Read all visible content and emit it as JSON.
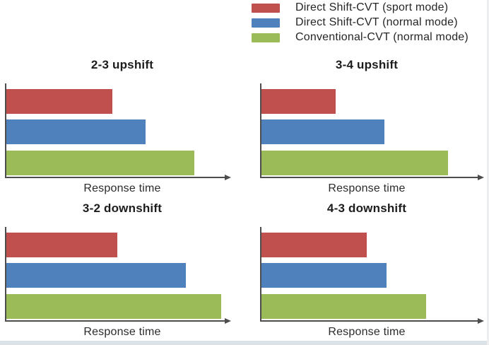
{
  "chart_data": {
    "type": "bar",
    "orientation": "horizontal",
    "value_scale": "relative bar length (0-1 fraction of unlabeled axis); no numeric ticks shown",
    "grid": false,
    "legend_position": "top-right",
    "series": [
      {
        "name": "Direct Shift-CVT  (sport mode)",
        "color": "#c0504d"
      },
      {
        "name": "Direct Shift-CVT  (normal mode)",
        "color": "#4f81bd"
      },
      {
        "name": "Conventional-CVT (normal mode)",
        "color": "#9bbb59"
      }
    ],
    "panels": [
      {
        "title": "2-3 upshift",
        "xlabel": "Response time",
        "values": [
          0.48,
          0.63,
          0.85
        ]
      },
      {
        "title": "3-4 upshift",
        "xlabel": "Response time",
        "values": [
          0.34,
          0.56,
          0.85
        ]
      },
      {
        "title": "3-2 downshift",
        "xlabel": "Response time",
        "values": [
          0.5,
          0.81,
          0.97
        ]
      },
      {
        "title": "4-3 downshift",
        "xlabel": "Response time",
        "values": [
          0.48,
          0.57,
          0.75
        ]
      }
    ],
    "colors": {
      "axis": "#4d4d4d",
      "text": "#262626",
      "background": "#ffffff"
    }
  }
}
